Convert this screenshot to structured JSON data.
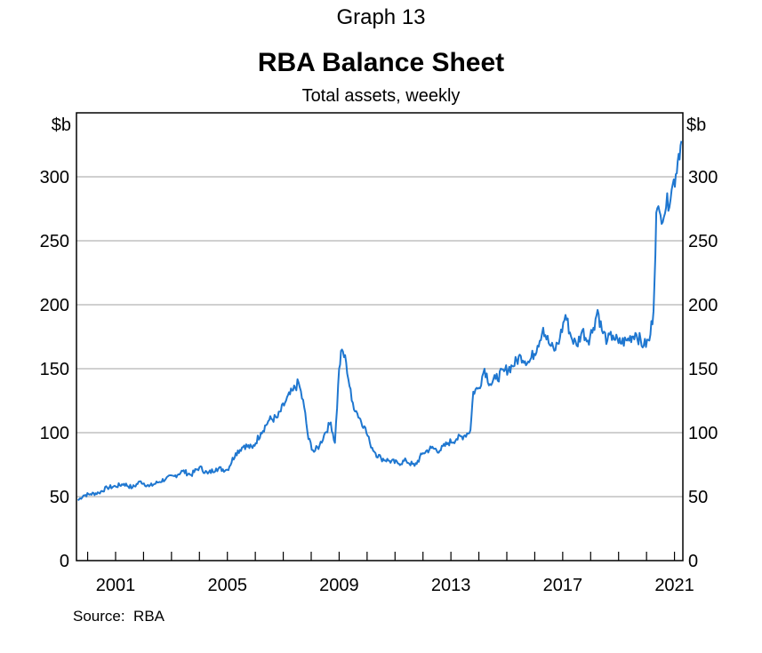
{
  "header": {
    "graph_number": "Graph 13"
  },
  "source": {
    "label": "Source:",
    "value": "RBA"
  },
  "colors": {
    "series": "#1f77d0",
    "gridline": "#b3b3b3",
    "axis": "#000000"
  },
  "chart_data": {
    "type": "line",
    "title": "RBA Balance Sheet",
    "subtitle": "Total assets, weekly",
    "y_unit_left": "$b",
    "y_unit_right": "$b",
    "xlim": [
      1999.6,
      2021.3
    ],
    "ylim": [
      0,
      350
    ],
    "y_ticks": [
      0,
      50,
      100,
      150,
      200,
      250,
      300
    ],
    "x_tick_labels": [
      "2001",
      "2005",
      "2009",
      "2013",
      "2017",
      "2021"
    ],
    "x_tick_values": [
      2001,
      2005,
      2009,
      2013,
      2017,
      2021
    ],
    "grid": "horizontal",
    "series": [
      {
        "values": [
          [
            1999.65,
            47
          ],
          [
            1999.85,
            51
          ],
          [
            2000.1,
            52
          ],
          [
            2000.4,
            53
          ],
          [
            2000.7,
            57
          ],
          [
            2001.0,
            58
          ],
          [
            2001.3,
            60
          ],
          [
            2001.6,
            57
          ],
          [
            2001.9,
            62
          ],
          [
            2002.2,
            58
          ],
          [
            2002.5,
            61
          ],
          [
            2002.8,
            64
          ],
          [
            2003.1,
            66
          ],
          [
            2003.4,
            70
          ],
          [
            2003.7,
            67
          ],
          [
            2004.0,
            73
          ],
          [
            2004.3,
            68
          ],
          [
            2004.6,
            72
          ],
          [
            2005.0,
            71
          ],
          [
            2005.3,
            84
          ],
          [
            2005.6,
            90
          ],
          [
            2005.9,
            88
          ],
          [
            2006.2,
            100
          ],
          [
            2006.5,
            110
          ],
          [
            2006.8,
            112
          ],
          [
            2007.1,
            125
          ],
          [
            2007.35,
            133
          ],
          [
            2007.55,
            139
          ],
          [
            2007.75,
            120
          ],
          [
            2007.9,
            95
          ],
          [
            2008.1,
            85
          ],
          [
            2008.3,
            90
          ],
          [
            2008.5,
            100
          ],
          [
            2008.7,
            108
          ],
          [
            2008.85,
            92
          ],
          [
            2009.0,
            150
          ],
          [
            2009.1,
            165
          ],
          [
            2009.25,
            155
          ],
          [
            2009.45,
            125
          ],
          [
            2009.65,
            115
          ],
          [
            2009.9,
            105
          ],
          [
            2010.1,
            92
          ],
          [
            2010.3,
            84
          ],
          [
            2010.5,
            80
          ],
          [
            2010.8,
            78
          ],
          [
            2011.1,
            76
          ],
          [
            2011.4,
            78
          ],
          [
            2011.7,
            74
          ],
          [
            2012.0,
            84
          ],
          [
            2012.3,
            88
          ],
          [
            2012.6,
            86
          ],
          [
            2012.9,
            92
          ],
          [
            2013.2,
            95
          ],
          [
            2013.5,
            98
          ],
          [
            2013.7,
            102
          ],
          [
            2013.8,
            132
          ],
          [
            2014.0,
            135
          ],
          [
            2014.2,
            150
          ],
          [
            2014.4,
            138
          ],
          [
            2014.6,
            142
          ],
          [
            2014.9,
            148
          ],
          [
            2015.2,
            152
          ],
          [
            2015.5,
            160
          ],
          [
            2015.8,
            155
          ],
          [
            2016.1,
            168
          ],
          [
            2016.3,
            182
          ],
          [
            2016.5,
            170
          ],
          [
            2016.7,
            164
          ],
          [
            2016.9,
            174
          ],
          [
            2017.1,
            192
          ],
          [
            2017.3,
            175
          ],
          [
            2017.5,
            168
          ],
          [
            2017.7,
            180
          ],
          [
            2017.9,
            172
          ],
          [
            2018.1,
            182
          ],
          [
            2018.25,
            196
          ],
          [
            2018.4,
            180
          ],
          [
            2018.6,
            172
          ],
          [
            2018.8,
            176
          ],
          [
            2019.0,
            170
          ],
          [
            2019.3,
            172
          ],
          [
            2019.6,
            178
          ],
          [
            2019.9,
            168
          ],
          [
            2020.1,
            172
          ],
          [
            2020.25,
            195
          ],
          [
            2020.35,
            272
          ],
          [
            2020.5,
            270
          ],
          [
            2020.7,
            276
          ],
          [
            2020.9,
            290
          ],
          [
            2021.05,
            302
          ],
          [
            2021.15,
            318
          ],
          [
            2021.25,
            328
          ]
        ]
      }
    ]
  }
}
